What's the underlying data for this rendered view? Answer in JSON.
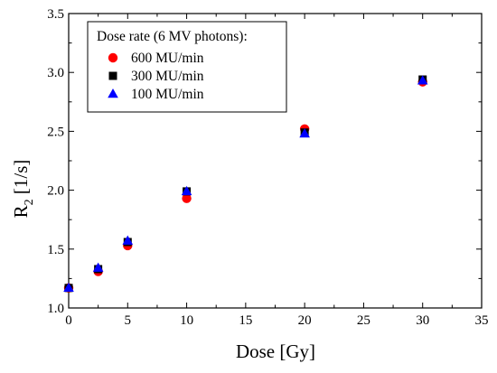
{
  "chart_data": {
    "type": "scatter",
    "title": "",
    "xlabel": "Dose [Gy]",
    "ylabel_main": "R",
    "ylabel_sub": "2",
    "ylabel_unit": " [1/s]",
    "xlim": [
      0,
      35
    ],
    "ylim": [
      1.0,
      3.5
    ],
    "xticks": [
      0,
      5,
      10,
      15,
      20,
      25,
      30,
      35
    ],
    "yticks": [
      1.0,
      1.5,
      2.0,
      2.5,
      3.0,
      3.5
    ],
    "xtick_labels": [
      "0",
      "5",
      "10",
      "15",
      "20",
      "25",
      "30",
      "35"
    ],
    "ytick_labels": [
      "1.0",
      "1.5",
      "2.0",
      "2.5",
      "3.0",
      "3.5"
    ],
    "grid": false,
    "legend": {
      "title": "Dose rate (6 MV photons):",
      "placement": "top-left"
    },
    "x": [
      0,
      2.5,
      5,
      10,
      20,
      30
    ],
    "series": [
      {
        "name": "600 MU/min",
        "marker": "circle",
        "color": "#ff0000",
        "values": [
          1.17,
          1.31,
          1.53,
          1.93,
          2.52,
          2.92
        ]
      },
      {
        "name": "300 MU/min",
        "marker": "square",
        "color": "#000000",
        "values": [
          1.17,
          1.33,
          1.56,
          1.99,
          2.49,
          2.94
        ]
      },
      {
        "name": "100 MU/min",
        "marker": "triangle",
        "color": "#0000ff",
        "values": [
          1.17,
          1.34,
          1.57,
          1.99,
          2.48,
          2.93
        ]
      }
    ]
  }
}
